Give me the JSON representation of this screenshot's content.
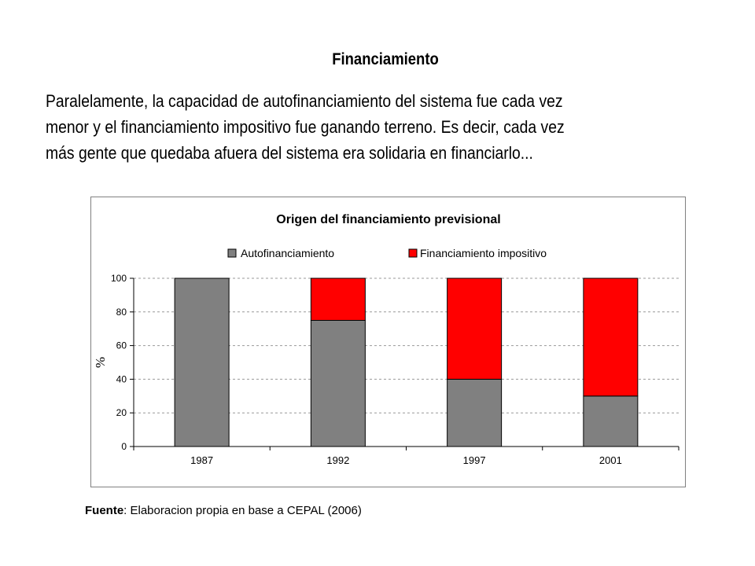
{
  "heading": "Financiamiento",
  "paragraph_lines": [
    "Paralelamente, la capacidad de autofinanciamiento del sistema fue cada vez",
    "menor y el financiamiento impositivo fue ganando terreno. Es decir, cada vez",
    "más gente que quedaba afuera del sistema era solidaria en financiarlo..."
  ],
  "source": {
    "label": "Fuente",
    "text": ": Elaboracion propia en base a CEPAL (2006)"
  },
  "chart_data": {
    "type": "bar",
    "stacked": true,
    "title": "Origen del financiamiento previsional",
    "ylabel": "%",
    "xlabel": "",
    "categories": [
      "1987",
      "1992",
      "1997",
      "2001"
    ],
    "series": [
      {
        "name": "Autofinanciamiento",
        "values": [
          100,
          75,
          40,
          30
        ],
        "color": "#808080"
      },
      {
        "name": "Financiamiento impositivo",
        "values": [
          0,
          25,
          60,
          70
        ],
        "color": "#ff0000"
      }
    ],
    "ylim": [
      0,
      100
    ],
    "yticks": [
      0,
      20,
      40,
      60,
      80,
      100
    ],
    "grid": true,
    "legend": "top"
  }
}
